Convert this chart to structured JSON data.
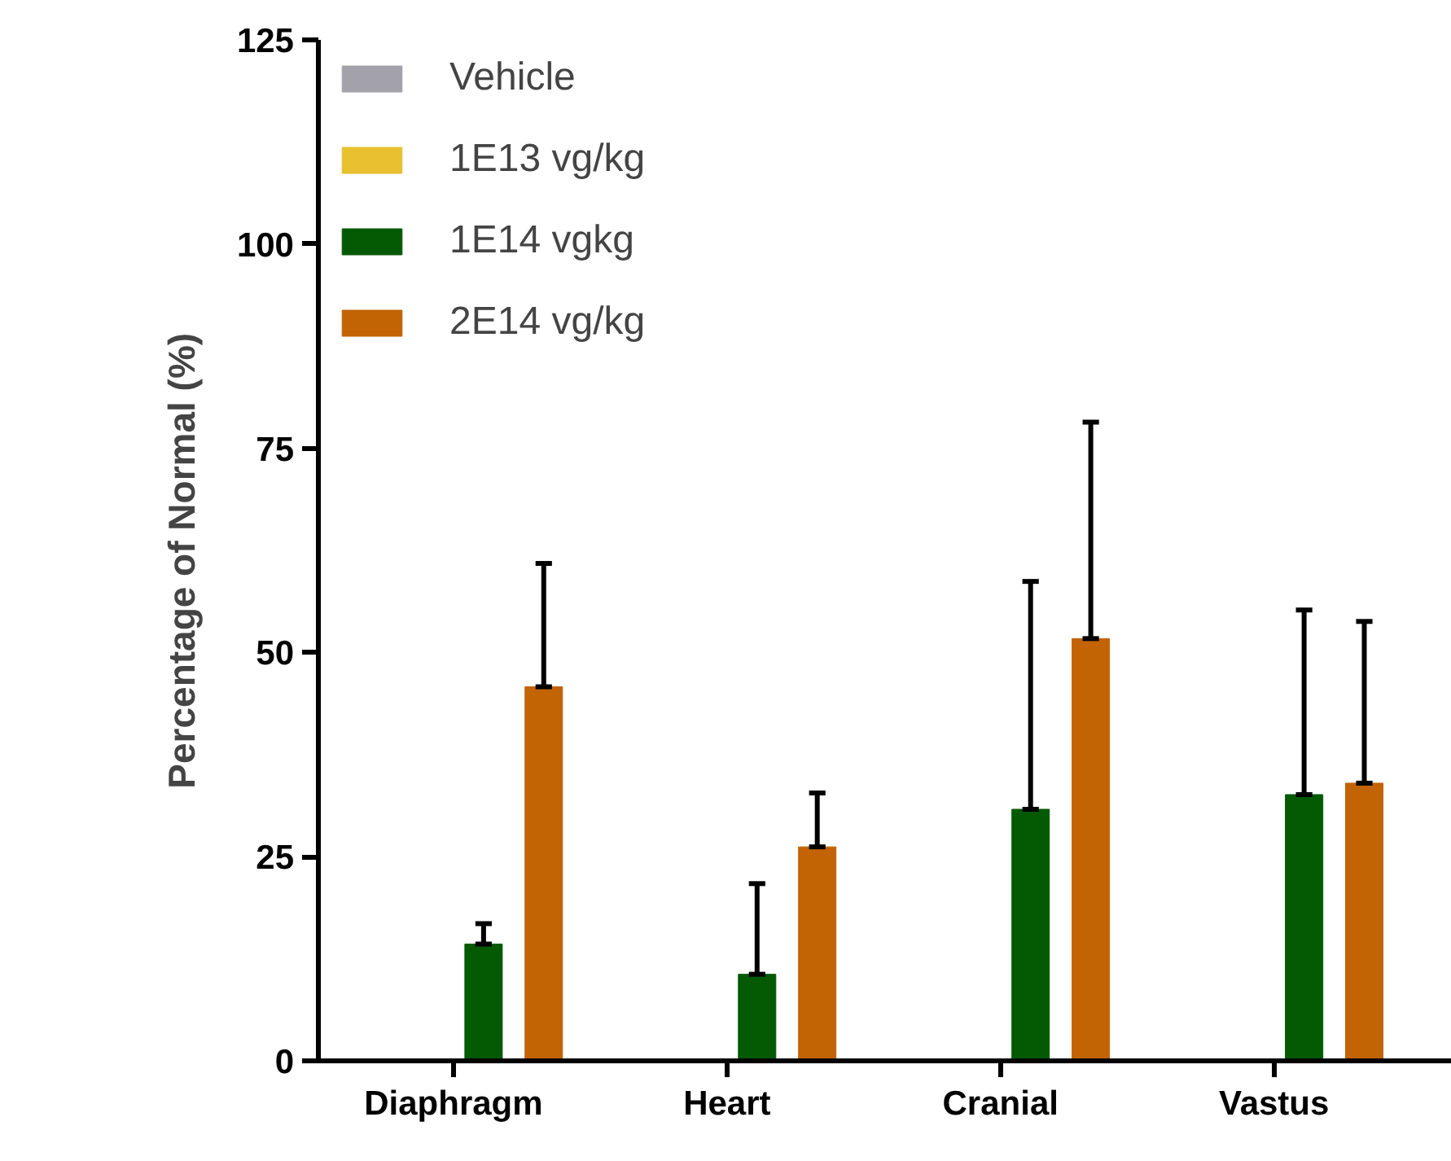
{
  "chart_data": {
    "type": "bar",
    "ylabel": "Percentage of  Normal  (%)",
    "categories": [
      "Diaphragm",
      "Heart",
      "Cranial",
      "Vastus"
    ],
    "ylim": [
      0,
      125
    ],
    "yticks": [
      0,
      25,
      50,
      75,
      100,
      125
    ],
    "grid": false,
    "legend": "top left",
    "series": [
      {
        "name": "Vehicle",
        "color": "#a3a2aa",
        "values": [
          0,
          0,
          0,
          0
        ]
      },
      {
        "name": "1E13 vg/kg",
        "color": "#e8c030",
        "values": [
          0,
          0,
          0,
          0
        ]
      },
      {
        "name": "1E14 vgkg",
        "color": "#035a03",
        "values": [
          14.3,
          10.6,
          30.8,
          32.6
        ],
        "errors": [
          [
            14.3,
            16.8
          ],
          [
            10.6,
            21.7
          ],
          [
            30.8,
            58.7
          ],
          [
            32.6,
            55.2
          ]
        ]
      },
      {
        "name": "2E14 vg/kg",
        "color": "#c26304",
        "values": [
          45.8,
          26.2,
          51.7,
          34.0
        ],
        "errors": [
          [
            45.8,
            60.9
          ],
          [
            26.2,
            32.8
          ],
          [
            51.7,
            78.2
          ],
          [
            34.0,
            53.8
          ]
        ]
      }
    ]
  }
}
